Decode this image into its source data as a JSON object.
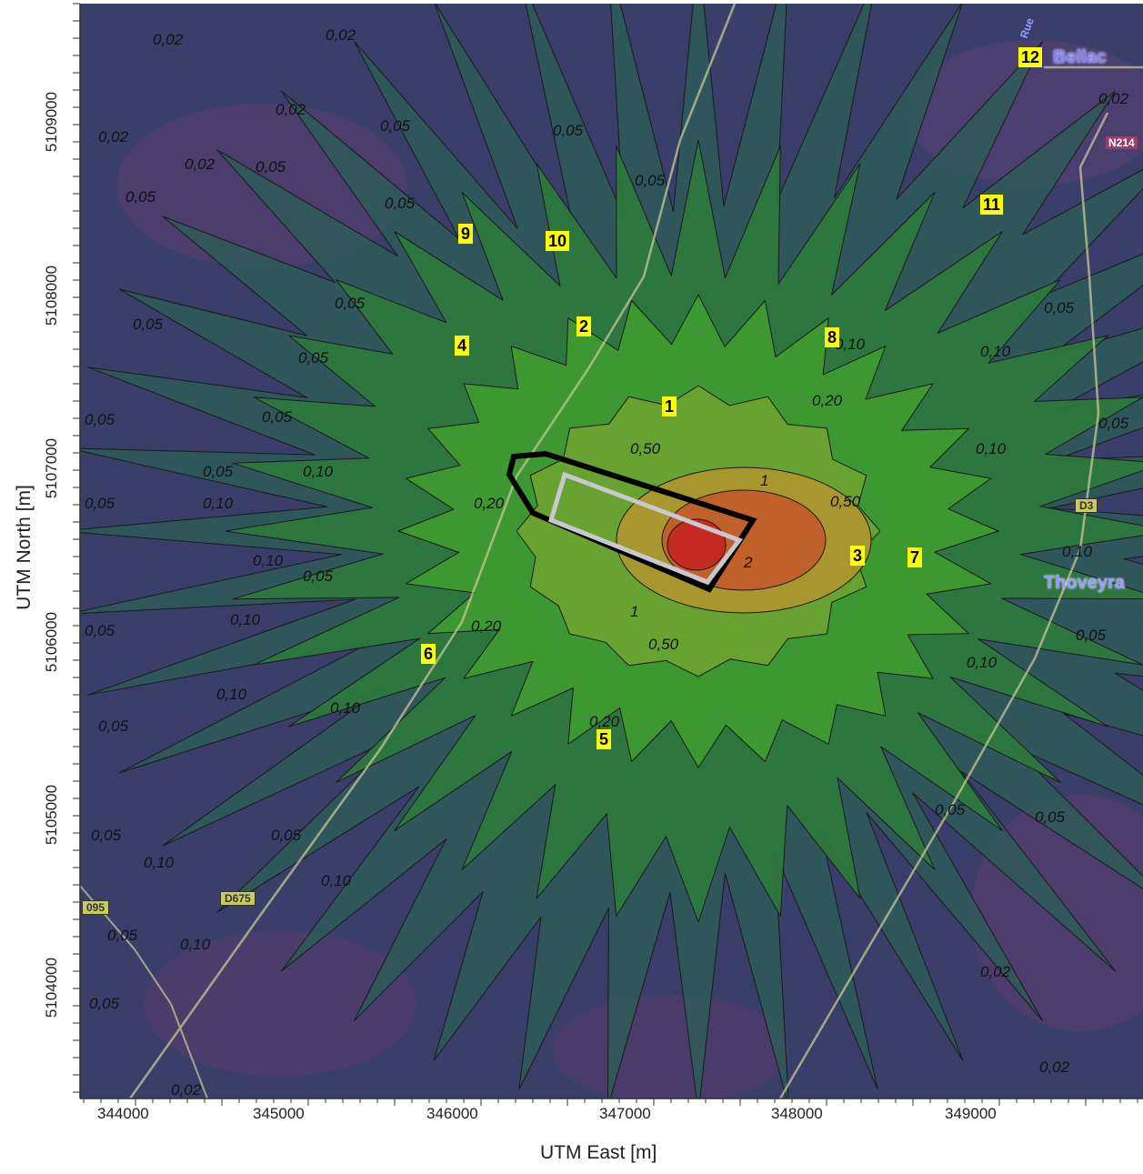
{
  "axes": {
    "x_title": "UTM East [m]",
    "y_title": "UTM North [m]",
    "x_ticks": [
      "344000",
      "345000",
      "346000",
      "347000",
      "348000",
      "349000"
    ],
    "y_ticks": [
      "5109000",
      "5108000",
      "5107000",
      "5106000",
      "5105000",
      "5104000"
    ]
  },
  "receptors": [
    "1",
    "2",
    "3",
    "4",
    "5",
    "6",
    "7",
    "8",
    "9",
    "10",
    "11",
    "12"
  ],
  "places": {
    "town_1": "Bellac",
    "town_2": "Thoveyra",
    "road_1": "N214",
    "road_2": "D3",
    "road_3": "D675",
    "road_4": "095",
    "road_5": "Rue"
  },
  "contour_levels": [
    "0,02",
    "0,05",
    "0,10",
    "0,20",
    "0,50",
    "1",
    "2"
  ],
  "colors": {
    "c002": "#4b3f78",
    "c005": "#2e5a58",
    "c010": "#2f7a3c",
    "c020": "#3f9a32",
    "c050": "#6aa232",
    "c1": "#a8962e",
    "c2": "#c0602a",
    "cmax": "#c42a22",
    "site_outer": "#000000",
    "site_inner": "#c8c8d0",
    "badge": "#ffff00"
  }
}
